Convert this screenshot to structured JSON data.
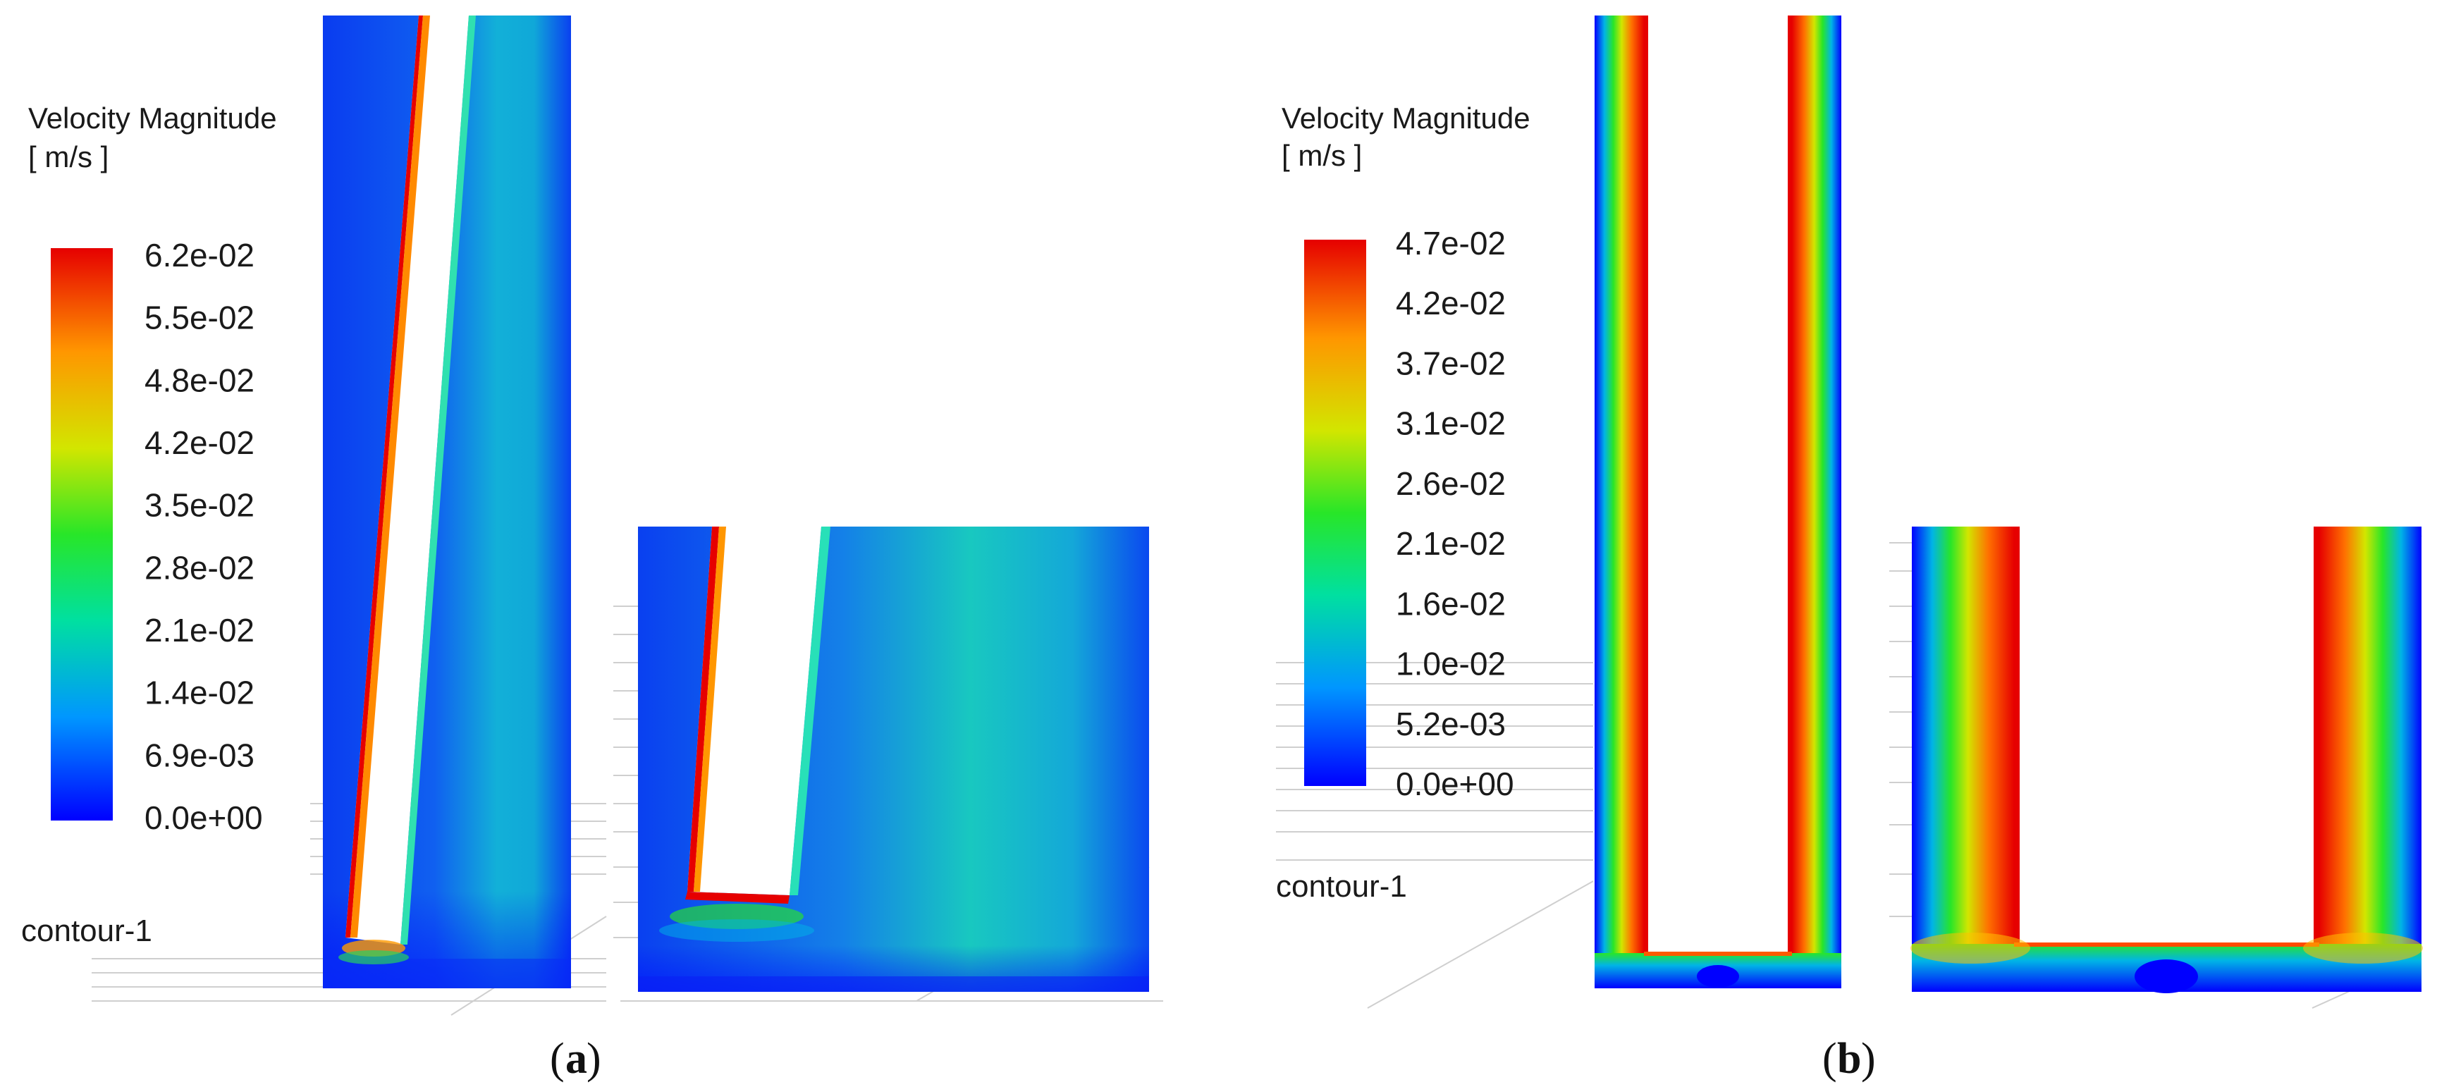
{
  "panel_a": {
    "legend": {
      "title_line1": "Velocity Magnitude",
      "title_line2": "[ m/s ]",
      "ticks": [
        "6.2e-02",
        "5.5e-02",
        "4.8e-02",
        "4.2e-02",
        "3.5e-02",
        "2.8e-02",
        "2.1e-02",
        "1.4e-02",
        "6.9e-03",
        "0.0e+00"
      ]
    },
    "contour_label": "contour-1",
    "caption_open": "(",
    "caption_letter": "a",
    "caption_close": ")"
  },
  "panel_b": {
    "legend": {
      "title_line1": "Velocity Magnitude",
      "title_line2": "[ m/s ]",
      "ticks": [
        "4.7e-02",
        "4.2e-02",
        "3.7e-02",
        "3.1e-02",
        "2.6e-02",
        "2.1e-02",
        "1.6e-02",
        "1.0e-02",
        "5.2e-03",
        "0.0e+00"
      ]
    },
    "contour_label": "contour-1",
    "caption_open": "(",
    "caption_letter": "b",
    "caption_close": ")"
  },
  "colors": {
    "min": "#0000ff",
    "low": "#0096ff",
    "mid_low": "#00e0a0",
    "mid": "#28e628",
    "mid_high": "#d2e600",
    "high": "#ff9600",
    "max": "#e60000"
  }
}
